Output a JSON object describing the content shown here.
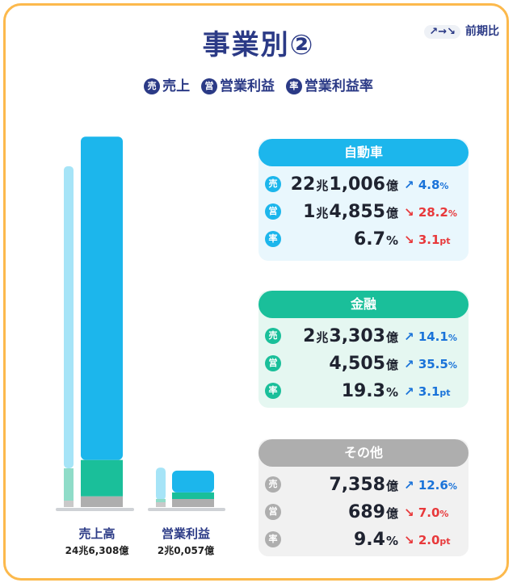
{
  "title": "事業別②",
  "legend": {
    "sales_chip": "売",
    "sales_label": "売上",
    "op_chip": "営",
    "op_label": "営業利益",
    "rate_chip": "率",
    "rate_label": "営業利益率"
  },
  "prev_period": {
    "arrows": "↗→↘",
    "label": "前期比"
  },
  "chart_data": {
    "type": "bar",
    "categories": [
      "売上高",
      "営業利益"
    ],
    "category_totals": [
      "24兆6,308億",
      "2兆0,057億"
    ],
    "series": [
      {
        "name": "自動車",
        "color": "#1cb6ec",
        "values": [
          221006,
          14855
        ]
      },
      {
        "name": "金融",
        "color": "#1abf9a",
        "values": [
          23303,
          4505
        ]
      },
      {
        "name": "その他",
        "color": "#aeaeae",
        "values": [
          7358,
          689
        ]
      }
    ],
    "previous_period_total": [
      233000,
      27000
    ],
    "unit": "億円"
  },
  "segments": [
    {
      "name": "自動車",
      "rows": [
        {
          "chip": "売",
          "num1": "22",
          "u1": "兆",
          "num2": "1,006",
          "u2": "億",
          "chg_arrow": "↗",
          "chg": "4.8",
          "chg_unit": "%",
          "dir": "up"
        },
        {
          "chip": "営",
          "num1": "1",
          "u1": "兆",
          "num2": "4,855",
          "u2": "億",
          "chg_arrow": "↘",
          "chg": "28.2",
          "chg_unit": "%",
          "dir": "down"
        },
        {
          "chip": "率",
          "num1": "",
          "u1": "",
          "num2": "6.7",
          "u2": "%",
          "chg_arrow": "↘",
          "chg": "3.1",
          "chg_unit": "pt",
          "dir": "down"
        }
      ]
    },
    {
      "name": "金融",
      "rows": [
        {
          "chip": "売",
          "num1": "2",
          "u1": "兆",
          "num2": "3,303",
          "u2": "億",
          "chg_arrow": "↗",
          "chg": "14.1",
          "chg_unit": "%",
          "dir": "up"
        },
        {
          "chip": "営",
          "num1": "",
          "u1": "",
          "num2": "4,505",
          "u2": "億",
          "chg_arrow": "↗",
          "chg": "35.5",
          "chg_unit": "%",
          "dir": "up"
        },
        {
          "chip": "率",
          "num1": "",
          "u1": "",
          "num2": "19.3",
          "u2": "%",
          "chg_arrow": "↗",
          "chg": "3.1",
          "chg_unit": "pt",
          "dir": "up"
        }
      ]
    },
    {
      "name": "その他",
      "rows": [
        {
          "chip": "売",
          "num1": "",
          "u1": "",
          "num2": "7,358",
          "u2": "億",
          "chg_arrow": "↗",
          "chg": "12.6",
          "chg_unit": "%",
          "dir": "up"
        },
        {
          "chip": "営",
          "num1": "",
          "u1": "",
          "num2": "689",
          "u2": "億",
          "chg_arrow": "↘",
          "chg": "7.0",
          "chg_unit": "%",
          "dir": "down"
        },
        {
          "chip": "率",
          "num1": "",
          "u1": "",
          "num2": "9.4",
          "u2": "%",
          "chg_arrow": "↘",
          "chg": "2.0",
          "chg_unit": "pt",
          "dir": "down"
        }
      ]
    }
  ]
}
